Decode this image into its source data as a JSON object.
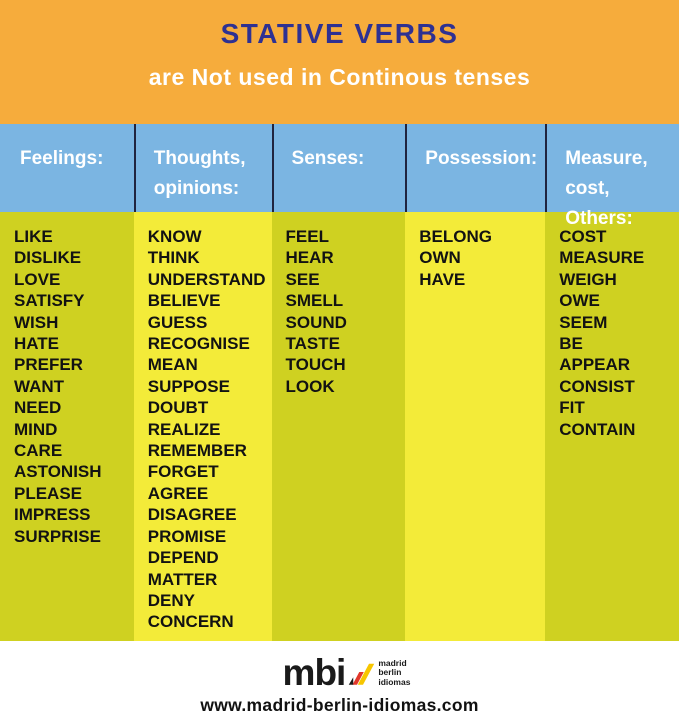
{
  "header": {
    "title": "STATIVE VERBS",
    "subtitle": "are Not used in Continous tenses"
  },
  "columns": [
    {
      "id": "feelings",
      "label": "Feelings:",
      "words": [
        "LIKE",
        "DISLIKE",
        "LOVE",
        "SATISFY",
        "WISH",
        "HATE",
        "PREFER",
        "WANT",
        "NEED",
        "MIND",
        "CARE",
        "ASTONISH",
        "PLEASE",
        "IMPRESS",
        "SURPRISE"
      ]
    },
    {
      "id": "thoughts-opinions",
      "label": "Thoughts,\nopinions:",
      "words": [
        "KNOW",
        "THINK",
        "UNDERSTAND",
        "BELIEVE",
        "GUESS",
        "RECOGNISE",
        "MEAN",
        "SUPPOSE",
        "DOUBT",
        "REALIZE",
        "REMEMBER",
        "FORGET",
        "AGREE",
        "DISAGREE",
        "PROMISE",
        "DEPEND",
        "MATTER",
        "DENY",
        "CONCERN"
      ]
    },
    {
      "id": "senses",
      "label": "Senses:",
      "words": [
        "FEEL",
        "HEAR",
        "SEE",
        "SMELL",
        "SOUND",
        "TASTE",
        "TOUCH",
        "LOOK"
      ]
    },
    {
      "id": "possession",
      "label": "Possession:",
      "words": [
        "BELONG",
        "OWN",
        "HAVE"
      ]
    },
    {
      "id": "measure-cost-others",
      "label": "Measure,\ncost, Others:",
      "words": [
        "COST",
        "MEASURE",
        "WEIGH",
        "OWE",
        "SEEM",
        "BE",
        "APPEAR",
        "CONSIST",
        "FIT",
        "CONTAIN"
      ]
    }
  ],
  "footer": {
    "logo_text": "mbi",
    "logo_words": [
      "madrid",
      "berlin",
      "idiomas"
    ],
    "website": "www.madrid-berlin-idiomas.com"
  },
  "colors": {
    "banner_orange": "#F6AC3C",
    "title_navy": "#2E3192",
    "subtitle_white": "#FFFFFF",
    "header_blue": "#7BB5E2",
    "column_olive": "#CFD121",
    "column_yellow": "#F3EB39",
    "divider_navy": "#20243F",
    "text_dark": "#121212",
    "logo_yellow": "#F7C600",
    "logo_red": "#E2372B",
    "logo_black": "#1A1A1A"
  }
}
